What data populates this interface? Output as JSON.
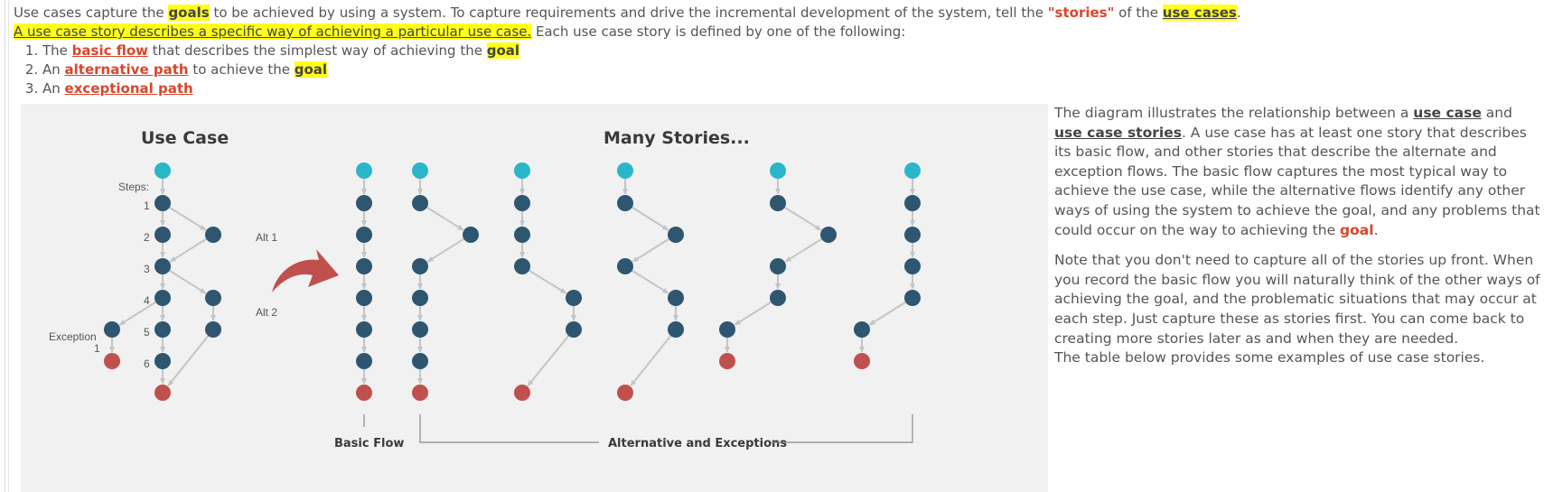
{
  "intro": {
    "line1": {
      "a": "Use cases capture the ",
      "goals": "goals",
      "b": " to be achieved by using a system. To capture requirements and drive the incremental development of the system, tell the ",
      "stories": "\"stories\"",
      "c": " of the ",
      "use_cases": "use cases",
      "d": "."
    },
    "line2": {
      "highlight": "A use case story describes a specific way of achieving a particular use case.",
      "rest": " Each use case story is defined by one of the following:"
    },
    "list": [
      {
        "pre": "The ",
        "link": "basic flow",
        "mid": " that describes the simplest way of achieving the ",
        "goal": "goal"
      },
      {
        "pre": "An ",
        "link": "alternative path",
        "mid": " to achieve the ",
        "goal": "goal"
      },
      {
        "pre": "An ",
        "link": "exceptional path",
        "mid": "",
        "goal": ""
      }
    ]
  },
  "diagram": {
    "use_case_title": "Use Case",
    "many_stories_title": "Many Stories...",
    "steps_label": "Steps:",
    "step_numbers": [
      "1",
      "2",
      "3",
      "4",
      "5",
      "6"
    ],
    "alt1_label": "Alt 1",
    "alt2_label": "Alt 2",
    "exception_label": "Exception",
    "exception_num": "1",
    "basic_flow_label": "Basic Flow",
    "alt_exceptions_label": "Alternative and Exceptions",
    "colors": {
      "start": "#29b6c8",
      "step": "#2e5670",
      "end": "#c0504d",
      "arrow": "#c0504d",
      "line": "#c4c4c4"
    }
  },
  "description": {
    "p1": {
      "a": "The diagram illustrates the relationship between a ",
      "use_case": "use case",
      "b": " and ",
      "use_case_stories": "use case stories",
      "c": ". A use case has at least one story that describes its basic flow, and other stories that describe the alternate and exception flows. The basic flow captures the most typical way to achieve the use case, while the alternative flows identify any other ways of using the system to achieve the goal, and any problems that could occur on the way to achieving the ",
      "goal": "goal",
      "d": "."
    },
    "p2": "Note that you don't need to capture all of the stories up front. When you record the basic flow you will naturally think of the other ways of achieving the goal, and the problematic situations that may occur at each step. Just capture these as stories first. You can come back to creating more stories later as and when they are needed.",
    "p3": "The table below provides some examples of use case stories."
  }
}
